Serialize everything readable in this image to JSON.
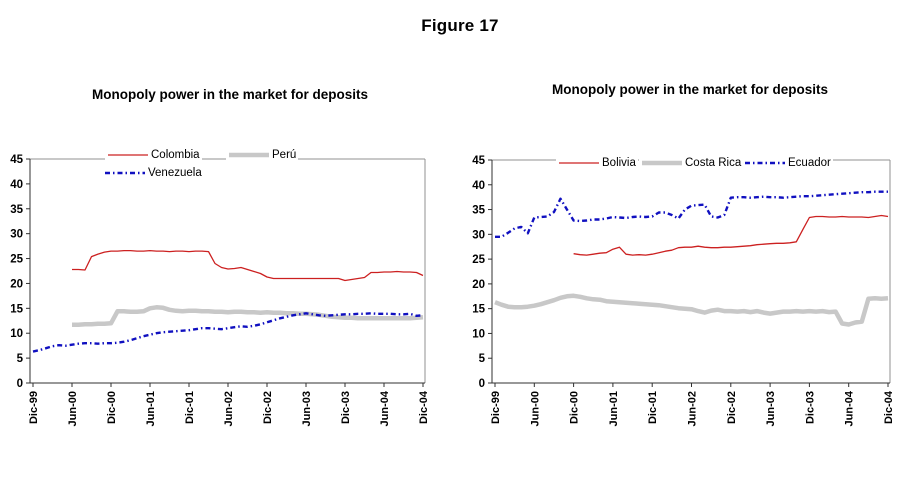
{
  "figure": {
    "title": "Figure 17"
  },
  "colors": {
    "axis": "#303030",
    "plot_border": "#909090",
    "text": "#000000",
    "background": "#ffffff"
  },
  "chart_data": [
    {
      "type": "line",
      "title": "Monopoly power in the market for deposits",
      "xlabel": "",
      "ylabel": "",
      "ylim": [
        0,
        45
      ],
      "y_step": 5,
      "grid": false,
      "legend_position": "top",
      "months": 61,
      "x_tick_every": 6,
      "x_tick_labels": [
        "Dic-99",
        "Jun-00",
        "Dic-00",
        "Jun-01",
        "Dic-01",
        "Jun-02",
        "Dic-02",
        "Jun-03",
        "Dic-03",
        "Jun-04",
        "Dic-04"
      ],
      "y_tick_labels": [
        "0",
        "5",
        "10",
        "15",
        "20",
        "25",
        "30",
        "35",
        "40",
        "45"
      ],
      "series": [
        {
          "name": "Colombia",
          "color": "#cc2020",
          "line_style": "solid",
          "start_month": 6,
          "values": [
            22.8,
            22.8,
            22.7,
            25.4,
            25.9,
            26.3,
            26.5,
            26.5,
            26.6,
            26.6,
            26.5,
            26.5,
            26.6,
            26.5,
            26.5,
            26.4,
            26.5,
            26.5,
            26.4,
            26.5,
            26.5,
            26.4,
            24.0,
            23.2,
            22.9,
            23.0,
            23.2,
            22.8,
            22.4,
            22.0,
            21.3,
            21.0,
            21.0,
            21.0,
            21.0,
            21.0,
            21.0,
            21.0,
            21.0,
            21.0,
            21.0,
            21.0,
            20.6,
            20.8,
            21.0,
            21.2,
            22.2,
            22.2,
            22.3,
            22.3,
            22.4,
            22.3,
            22.3,
            22.2,
            21.6
          ]
        },
        {
          "name": "Perú",
          "color": "#c8c8c8",
          "line_style": "thick",
          "start_month": 6,
          "values": [
            11.7,
            11.7,
            11.8,
            11.8,
            11.9,
            11.9,
            12.0,
            14.4,
            14.4,
            14.3,
            14.3,
            14.4,
            15.0,
            15.2,
            15.1,
            14.7,
            14.5,
            14.4,
            14.5,
            14.5,
            14.4,
            14.4,
            14.3,
            14.3,
            14.2,
            14.3,
            14.3,
            14.2,
            14.2,
            14.1,
            14.2,
            14.1,
            14.1,
            14.0,
            14.0,
            13.9,
            13.9,
            13.8,
            13.7,
            13.5,
            13.3,
            13.2,
            13.1,
            13.1,
            13.0,
            13.0,
            13.0,
            13.0,
            13.0,
            13.0,
            13.0,
            13.0,
            13.0,
            13.1,
            13.2
          ]
        },
        {
          "name": "Venezuela",
          "color": "#1010c0",
          "line_style": "dash-dot",
          "start_month": 0,
          "values": [
            6.3,
            6.6,
            7.0,
            7.4,
            7.6,
            7.5,
            7.7,
            7.9,
            8.0,
            8.0,
            7.9,
            8.0,
            8.0,
            8.1,
            8.3,
            8.6,
            9.0,
            9.4,
            9.7,
            10.0,
            10.2,
            10.3,
            10.4,
            10.5,
            10.6,
            10.8,
            11.0,
            11.0,
            10.9,
            10.8,
            11.0,
            11.2,
            11.4,
            11.3,
            11.5,
            11.8,
            12.2,
            12.6,
            13.0,
            13.3,
            13.6,
            13.8,
            14.0,
            13.8,
            13.6,
            13.5,
            13.6,
            13.7,
            13.8,
            13.8,
            13.9,
            13.9,
            14.0,
            13.9,
            13.9,
            13.9,
            13.8,
            13.8,
            13.9,
            13.5,
            13.6
          ]
        }
      ]
    },
    {
      "type": "line",
      "title": "Monopoly power in the market for deposits",
      "xlabel": "",
      "ylabel": "",
      "ylim": [
        0,
        45
      ],
      "y_step": 5,
      "grid": false,
      "legend_position": "top",
      "months": 61,
      "x_tick_every": 6,
      "x_tick_labels": [
        "Dic-99",
        "Jun-00",
        "Dic-00",
        "Jun-01",
        "Dic-01",
        "Jun-02",
        "Dic-02",
        "Jun-03",
        "Dic-03",
        "Jun-04",
        "Dic-04"
      ],
      "y_tick_labels": [
        "0",
        "5",
        "10",
        "15",
        "20",
        "25",
        "30",
        "35",
        "40",
        "45"
      ],
      "series": [
        {
          "name": "Bolivia",
          "color": "#cc2020",
          "line_style": "solid",
          "start_month": 12,
          "values": [
            26.1,
            25.9,
            25.8,
            26.0,
            26.2,
            26.3,
            27.0,
            27.4,
            26.0,
            25.8,
            25.9,
            25.8,
            26.0,
            26.3,
            26.6,
            26.8,
            27.3,
            27.4,
            27.4,
            27.6,
            27.4,
            27.3,
            27.3,
            27.4,
            27.4,
            27.5,
            27.6,
            27.7,
            27.9,
            28.0,
            28.1,
            28.2,
            28.2,
            28.3,
            28.5,
            31.0,
            33.4,
            33.6,
            33.6,
            33.5,
            33.5,
            33.6,
            33.5,
            33.5,
            33.5,
            33.4,
            33.6,
            33.8,
            33.6
          ]
        },
        {
          "name": "Costa Rica",
          "color": "#c8c8c8",
          "line_style": "thick",
          "start_month": 0,
          "values": [
            16.3,
            15.8,
            15.4,
            15.3,
            15.3,
            15.4,
            15.6,
            15.9,
            16.3,
            16.7,
            17.2,
            17.5,
            17.6,
            17.4,
            17.1,
            16.9,
            16.8,
            16.5,
            16.4,
            16.3,
            16.2,
            16.1,
            16.0,
            15.9,
            15.8,
            15.7,
            15.5,
            15.3,
            15.1,
            15.0,
            14.9,
            14.5,
            14.2,
            14.6,
            14.8,
            14.5,
            14.5,
            14.4,
            14.5,
            14.3,
            14.5,
            14.2,
            14.0,
            14.2,
            14.4,
            14.4,
            14.5,
            14.4,
            14.5,
            14.4,
            14.5,
            14.3,
            14.4,
            12.0,
            11.8,
            12.2,
            12.4,
            17.0,
            17.1,
            17.0,
            17.1
          ]
        },
        {
          "name": "Ecuador",
          "color": "#1010c0",
          "line_style": "dash-dot",
          "start_month": 0,
          "values": [
            29.5,
            29.5,
            30.3,
            31.2,
            31.5,
            30.2,
            33.4,
            33.5,
            33.6,
            34.5,
            37.2,
            35.0,
            32.8,
            32.7,
            32.8,
            33.0,
            33.0,
            33.2,
            33.5,
            33.4,
            33.3,
            33.5,
            33.6,
            33.5,
            33.6,
            34.4,
            34.4,
            33.9,
            33.2,
            35.0,
            35.8,
            35.9,
            36.0,
            33.6,
            33.4,
            33.9,
            37.4,
            37.5,
            37.5,
            37.4,
            37.5,
            37.6,
            37.5,
            37.5,
            37.4,
            37.5,
            37.6,
            37.7,
            37.7,
            37.8,
            37.9,
            38.0,
            38.1,
            38.2,
            38.3,
            38.4,
            38.5,
            38.5,
            38.6,
            38.6,
            38.6
          ]
        }
      ]
    }
  ]
}
